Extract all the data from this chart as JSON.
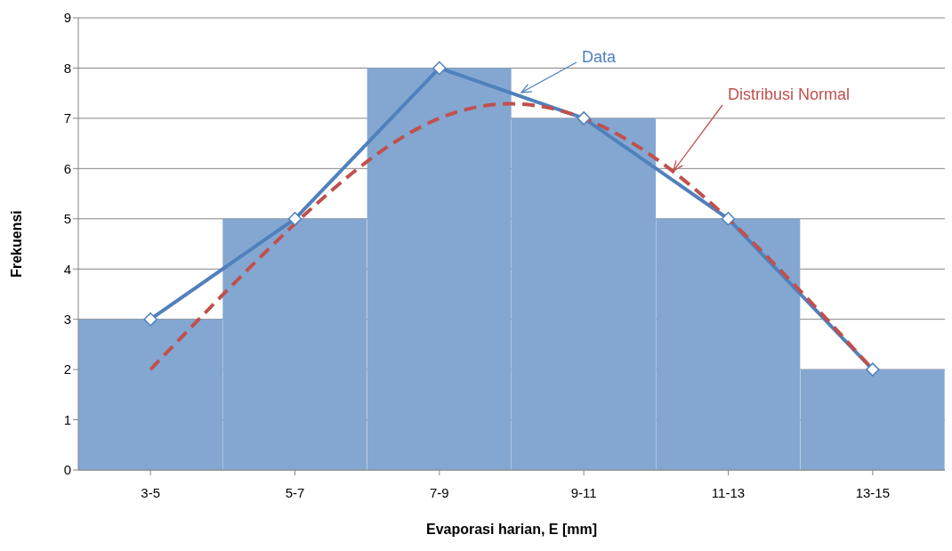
{
  "chart_data": {
    "type": "bar",
    "xlabel": "Evaporasi harian, E [mm]",
    "ylabel": "Frekuensi",
    "categories": [
      "3-5",
      "5-7",
      "7-9",
      "9-11",
      "11-13",
      "13-15"
    ],
    "series": [
      {
        "color": "#84a7d1",
        "values": [
          3,
          5,
          8,
          7,
          5,
          2
        ]
      },
      {
        "type": "line",
        "name": "Data",
        "color": "#4f81bd",
        "marker": "diamond",
        "line_style": "solid",
        "values": [
          3,
          5,
          8,
          7,
          5,
          2
        ]
      },
      {
        "type": "line",
        "name": "Distribusi Normal",
        "color": "#c0504d",
        "marker": "none",
        "line_style": "dashed",
        "values": [
          2,
          4.9,
          7.0,
          7.0,
          5.0,
          2.0
        ]
      }
    ],
    "ylim": [
      0,
      9
    ],
    "yticks": [
      0,
      1,
      2,
      3,
      4,
      5,
      6,
      7,
      8,
      9
    ],
    "grid": "y",
    "legend": false
  }
}
